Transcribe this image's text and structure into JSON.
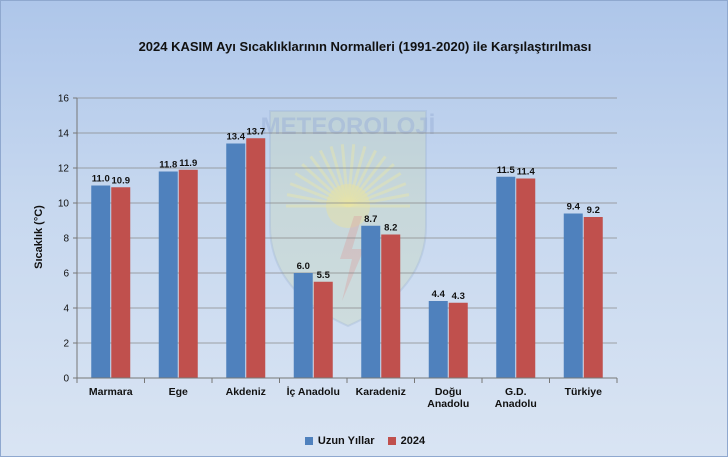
{
  "chart_data": {
    "type": "bar",
    "title": "2024 KASIM Ayı Sıcaklıklarının Normalleri (1991-2020) ile Karşılaştırılması",
    "xlabel": "",
    "ylabel": "Sıcaklık (°C)",
    "ylim": [
      0,
      16
    ],
    "yticks": [
      "0",
      "2",
      "4",
      "6",
      "8",
      "10",
      "12",
      "14",
      "16"
    ],
    "categories": [
      [
        "Marmara"
      ],
      [
        "Ege"
      ],
      [
        "Akdeniz"
      ],
      [
        "İç Anadolu"
      ],
      [
        "Karadeniz"
      ],
      [
        "Doğu",
        "Anadolu"
      ],
      [
        "G.D.",
        "Anadolu"
      ],
      [
        "Türkiye"
      ]
    ],
    "series": [
      {
        "name": "Uzun Yıllar",
        "color": "#4f81bd",
        "values": [
          11.0,
          11.8,
          13.4,
          6.0,
          8.7,
          4.4,
          11.5,
          9.4
        ],
        "labels": [
          "11.0",
          "11.8",
          "13.4",
          "6.0",
          "8.7",
          "4.4",
          "11.5",
          "9.4"
        ]
      },
      {
        "name": "2024",
        "color": "#c0504d",
        "values": [
          10.9,
          11.9,
          13.7,
          5.5,
          8.2,
          4.3,
          11.4,
          9.2
        ],
        "labels": [
          "10.9",
          "11.9",
          "13.7",
          "5.5",
          "8.2",
          "4.3",
          "11.4",
          "9.2"
        ]
      }
    ],
    "grid": true,
    "legend": "bottom-center"
  },
  "watermark": {
    "text": "METEOROLOJİ"
  }
}
